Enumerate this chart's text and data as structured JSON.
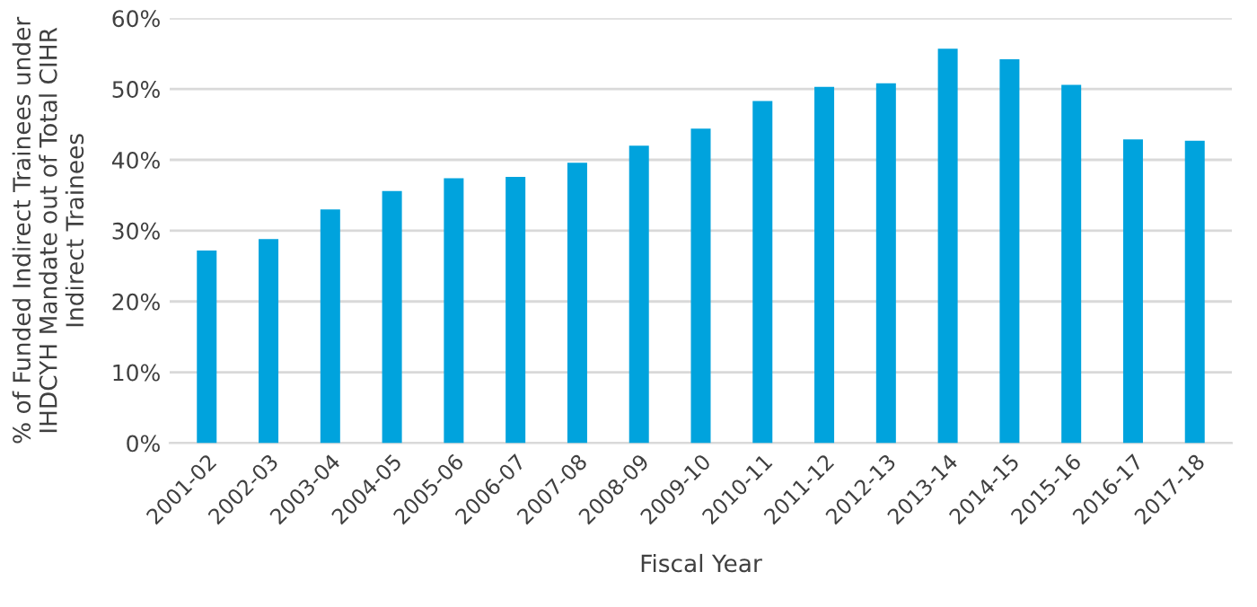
{
  "chart_data": {
    "type": "bar",
    "xlabel": "Fiscal Year",
    "ylabel": "% of Funded Indirect Trainees under IHDCYH Mandate out of Total CIHR Indirect Trainees",
    "categories": [
      "2001-02",
      "2002-03",
      "2003-04",
      "2004-05",
      "2005-06",
      "2006-07",
      "2007-08",
      "2008-09",
      "2009-10",
      "2010-11",
      "2011-12",
      "2012-13",
      "2013-14",
      "2014-15",
      "2015-16",
      "2016-17",
      "2017-18"
    ],
    "values": [
      27.2,
      28.8,
      33.0,
      35.6,
      37.4,
      37.6,
      39.6,
      42.0,
      44.4,
      48.3,
      50.3,
      50.8,
      55.7,
      54.2,
      50.6,
      42.9,
      42.7
    ],
    "color": "#00a3dd",
    "ylim": [
      0,
      60
    ],
    "yticks": [
      {
        "value": 0,
        "label": "0%"
      },
      {
        "value": 10,
        "label": "10%"
      },
      {
        "value": 20,
        "label": "20%"
      },
      {
        "value": 30,
        "label": "30%"
      },
      {
        "value": 40,
        "label": "40%"
      },
      {
        "value": 50,
        "label": "50%"
      },
      {
        "value": 60,
        "label": "60%"
      }
    ],
    "grid": "y"
  }
}
